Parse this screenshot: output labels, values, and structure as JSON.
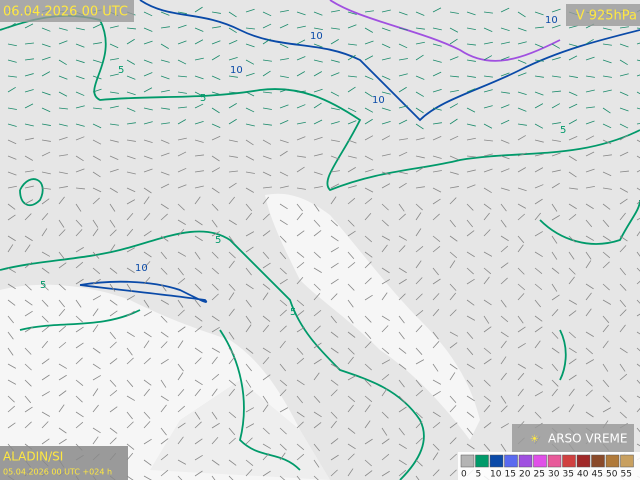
{
  "header": {
    "valid_time": "06.04.2026 00 UTC",
    "level": "V 925hPa"
  },
  "footer": {
    "model": "ALADIN/SI",
    "run": "05.04.2026 00 UTC +024 h",
    "brand": "ARSO VREME"
  },
  "contour_labels": [
    "10",
    "10",
    "10",
    "10",
    "5",
    "5",
    "10",
    "5",
    "5",
    "5",
    "5"
  ],
  "legend": {
    "items": [
      {
        "label": "0",
        "color": "#b4b4b4"
      },
      {
        "label": "5",
        "color": "#009a6a"
      },
      {
        "label": "10",
        "color": "#0a4aa8"
      },
      {
        "label": "15",
        "color": "#5a6af0"
      },
      {
        "label": "20",
        "color": "#a050e0"
      },
      {
        "label": "25",
        "color": "#e050e8"
      },
      {
        "label": "30",
        "color": "#e85a9a"
      },
      {
        "label": "35",
        "color": "#d04040"
      },
      {
        "label": "40",
        "color": "#a02828"
      },
      {
        "label": "45",
        "color": "#8a4a2a"
      },
      {
        "label": "50",
        "color": "#b07a3a"
      },
      {
        "label": "55",
        "color": "#c8a060"
      }
    ]
  }
}
